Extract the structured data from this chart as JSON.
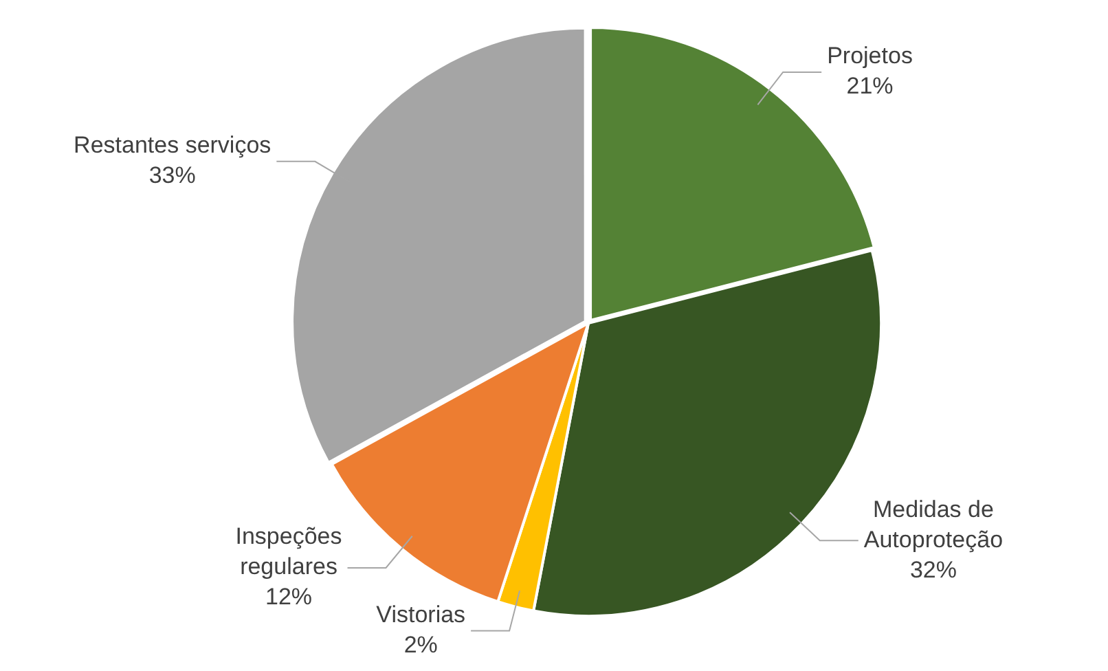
{
  "chart_data": {
    "type": "pie",
    "categories": [
      "Projetos",
      "Medidas de Autoproteção",
      "Vistorias",
      "Inspeções regulares",
      "Restantes serviços"
    ],
    "values": [
      21,
      32,
      2,
      12,
      33
    ],
    "colors": [
      "#548235",
      "#375623",
      "#ffc000",
      "#ed7d31",
      "#a5a5a5"
    ],
    "value_labels": [
      "21%",
      "32%",
      "2%",
      "12%",
      "33%"
    ],
    "legend": false
  }
}
